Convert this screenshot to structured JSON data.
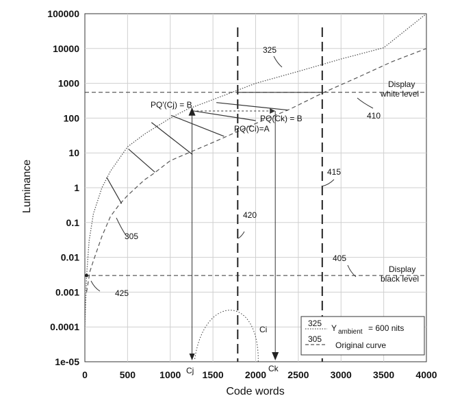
{
  "chart_data": {
    "type": "line",
    "xlabel": "Code words",
    "ylabel": "Luminance",
    "x_scale": "linear",
    "y_scale": "log",
    "xlim": [
      0,
      4000
    ],
    "ylim": [
      1e-05,
      100000
    ],
    "x_ticks": [
      "0",
      "500",
      "1000",
      "1500",
      "2000",
      "2500",
      "3000",
      "3500",
      "4000"
    ],
    "y_ticks": [
      "1e-05",
      "0.0001",
      "0.001",
      "0.01",
      "0.1",
      "1",
      "10",
      "100",
      "1000",
      "10000",
      "100000"
    ],
    "grid": true,
    "series": [
      {
        "name": "Yambient = 600 nits",
        "ref": "325",
        "style": "dotted",
        "x": [
          0,
          20,
          50,
          100,
          200,
          300,
          500,
          700,
          1000,
          1200,
          1500,
          2000,
          2500,
          3000,
          3500,
          4000
        ],
        "y": [
          0.0001,
          0.003,
          0.03,
          0.18,
          1,
          3,
          15,
          35,
          100,
          180,
          340,
          1000,
          2200,
          5000,
          10500,
          100000
        ]
      },
      {
        "name": "Original curve",
        "ref": "305",
        "style": "dashed",
        "x": [
          20,
          60,
          100,
          200,
          300,
          400,
          500,
          700,
          800,
          1000,
          1500,
          2000,
          2400,
          2800,
          3200,
          3600,
          4000
        ],
        "y": [
          0.001,
          0.004,
          0.008,
          0.04,
          0.15,
          0.32,
          0.6,
          1.7,
          2.5,
          6,
          20,
          70,
          180,
          550,
          1500,
          4200,
          10000
        ]
      }
    ],
    "reference_lines": [
      {
        "label": "Display white level",
        "ref": "410",
        "y": 550
      },
      {
        "label": "Display black level",
        "ref": "405",
        "y": 0.003
      },
      {
        "label": "420",
        "x": 1790
      },
      {
        "label": "415",
        "x": 2780
      }
    ],
    "annotations": {
      "pq_prime_cj": "PQ'(Cj) = B",
      "pq_ck": "PQ(Ck) = B",
      "pq_ci": "PQ(Ci)=A",
      "cj": "Cj",
      "ck": "Ck",
      "ci": "Ci",
      "ref_325": "325",
      "ref_305": "305",
      "ref_410": "410",
      "ref_405": "405",
      "ref_415": "415",
      "ref_420": "420",
      "ref_425": "425",
      "display_white_1": "Display",
      "display_white_2": "white level",
      "display_black_1": "Display",
      "display_black_2": "black level"
    },
    "legend": {
      "placement": "bottom-right",
      "entry1_ref": "325",
      "entry1_text": "Y",
      "entry1_sub": "ambient",
      "entry1_tail": "= 600 nits",
      "entry2_ref": "305",
      "entry2_text": "Original curve"
    }
  }
}
